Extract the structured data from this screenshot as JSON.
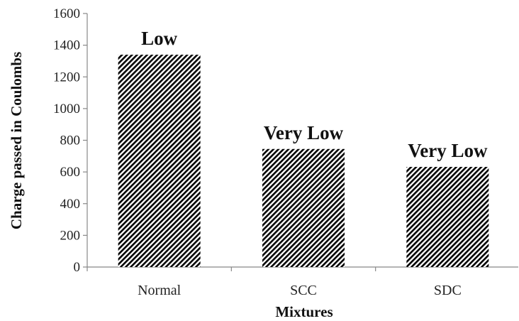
{
  "chart_data": {
    "type": "bar",
    "title": "",
    "xlabel": "Mixtures",
    "ylabel": "Charge passed in Coulombs",
    "categories": [
      "Normal",
      "SCC",
      "SDC"
    ],
    "values": [
      1340,
      745,
      632
    ],
    "data_labels": [
      "Low",
      "Very Low",
      "Very Low"
    ],
    "ylim": [
      0,
      1600
    ],
    "yticks": [
      0,
      200,
      400,
      600,
      800,
      1000,
      1200,
      1400,
      1600
    ],
    "ytick_labels": [
      "0",
      "200",
      "400",
      "600",
      "800",
      "1000",
      "1200",
      "1400",
      "1600"
    ],
    "grid": false,
    "legend": "none",
    "bar_fill": "diagonal-hatch",
    "colors": {
      "bar_stripe": "#000000",
      "bar_bg": "#ffffff",
      "axis": "#888888",
      "text": "#222222"
    }
  }
}
